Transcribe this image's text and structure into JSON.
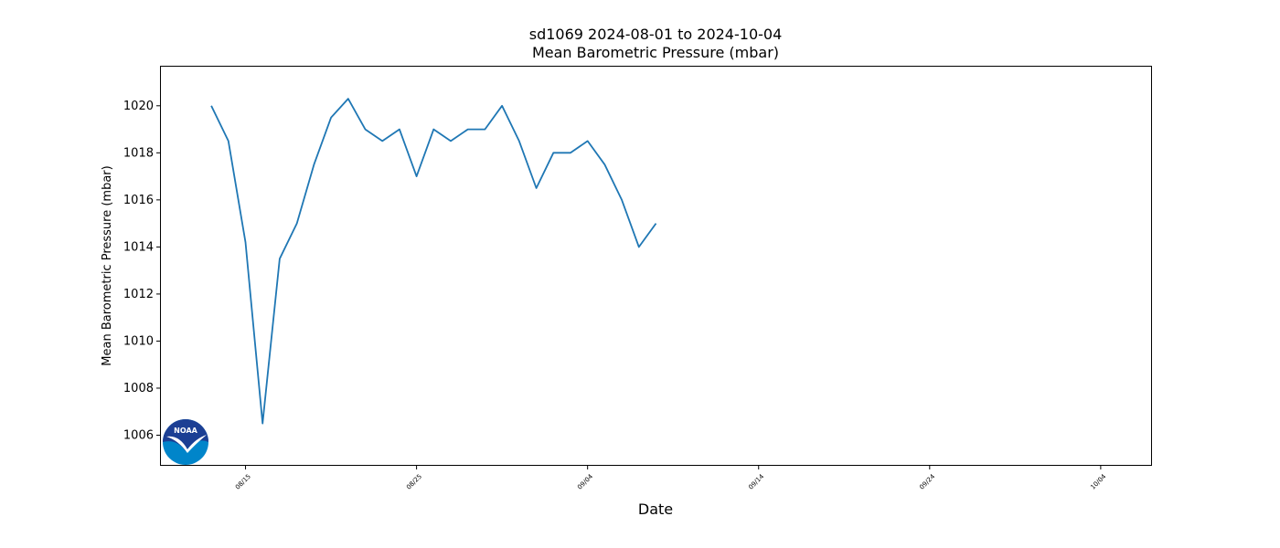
{
  "chart_data": {
    "type": "line",
    "title": "sd1069 2024-08-01 to 2024-10-04",
    "subtitle": "Mean Barometric Pressure (mbar)",
    "xlabel": "Date",
    "ylabel": "Mean Barometric Pressure (mbar)",
    "logo_text": "NOAA",
    "x": [
      "08/13",
      "08/14",
      "08/15",
      "08/16",
      "08/17",
      "08/18",
      "08/19",
      "08/20",
      "08/21",
      "08/22",
      "08/23",
      "08/24",
      "08/25",
      "08/26",
      "08/27",
      "08/28",
      "08/29",
      "08/30",
      "08/31",
      "09/01",
      "09/02",
      "09/03",
      "09/04",
      "09/05",
      "09/06",
      "09/07",
      "09/08"
    ],
    "series": [
      {
        "name": "Mean Barometric Pressure (mbar)",
        "color": "#1f77b4",
        "values": [
          1020,
          1018.5,
          1014.2,
          1006.5,
          1013.5,
          1015,
          1017.5,
          1019.5,
          1020.3,
          1019,
          1018.5,
          1019,
          1017,
          1019,
          1018.5,
          1019,
          1019,
          1020,
          1018.5,
          1016.5,
          1018,
          1018,
          1018.5,
          1017.5,
          1016,
          1014,
          1015
        ]
      }
    ],
    "xlim": [
      "08/10",
      "10/07"
    ],
    "xticks": [
      "08/15",
      "08/25",
      "09/04",
      "09/14",
      "09/24",
      "10/04"
    ],
    "ylim": [
      1004.7,
      1021.7
    ],
    "yticks": [
      1006,
      1008,
      1010,
      1012,
      1014,
      1016,
      1018,
      1020
    ],
    "grid": false
  }
}
